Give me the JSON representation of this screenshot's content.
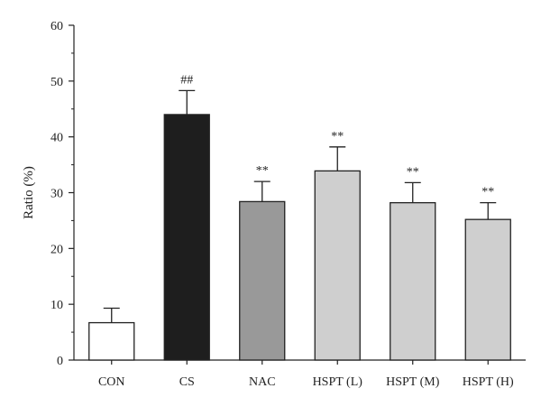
{
  "chart_data": {
    "type": "bar",
    "ylabel": "Ratio (%)",
    "xlabel": "",
    "ylim": [
      0,
      60
    ],
    "yticks": [
      0,
      10,
      20,
      30,
      40,
      50,
      60
    ],
    "categories": [
      "CON",
      "CS",
      "NAC",
      "HSPT (L)",
      "HSPT (M)",
      "HSPT (H)"
    ],
    "values": [
      6.7,
      44.0,
      28.4,
      33.9,
      28.2,
      25.2
    ],
    "errors": [
      2.6,
      4.3,
      3.6,
      4.3,
      3.6,
      3.0
    ],
    "significance": [
      "",
      "##",
      "**",
      "**",
      "**",
      "**"
    ],
    "bar_colors": [
      "#ffffff",
      "#1e1e1e",
      "#999999",
      "#cfcfcf",
      "#cfcfcf",
      "#cfcfcf"
    ],
    "grid": false
  }
}
